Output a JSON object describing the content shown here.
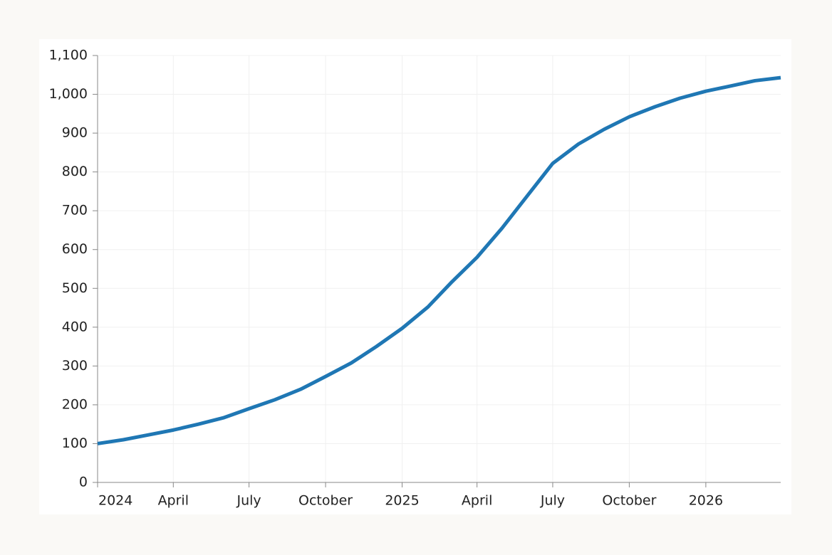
{
  "chart_data": {
    "type": "line",
    "x": [
      "2024-01",
      "2024-02",
      "2024-03",
      "2024-04",
      "2024-05",
      "2024-06",
      "2024-07",
      "2024-08",
      "2024-09",
      "2024-10",
      "2024-11",
      "2024-12",
      "2025-01",
      "2025-02",
      "2025-03",
      "2025-04",
      "2025-05",
      "2025-06",
      "2025-07",
      "2025-08",
      "2025-09",
      "2025-10",
      "2025-11",
      "2025-12",
      "2026-01",
      "2026-02",
      "2026-03",
      "2026-04"
    ],
    "series": [
      {
        "color": "#1f77b4",
        "values": [
          100,
          110,
          122,
          135,
          150,
          167,
          190,
          213,
          240,
          273,
          308,
          350,
          397,
          452,
          515,
          580,
          655,
          740,
          822,
          872,
          910,
          942,
          968,
          990,
          1008,
          1022,
          1035,
          1043
        ]
      }
    ],
    "xlim": [
      "2024-01",
      "2026-04"
    ],
    "xticks": [
      {
        "value": "2024-01",
        "label": "2024"
      },
      {
        "value": "2024-04",
        "label": "April"
      },
      {
        "value": "2024-07",
        "label": "July"
      },
      {
        "value": "2024-10",
        "label": "October"
      },
      {
        "value": "2025-01",
        "label": "2025"
      },
      {
        "value": "2025-04",
        "label": "April"
      },
      {
        "value": "2025-07",
        "label": "July"
      },
      {
        "value": "2025-10",
        "label": "October"
      },
      {
        "value": "2026-01",
        "label": "2026"
      }
    ],
    "ylim": [
      0,
      1100
    ],
    "yticks": [
      0,
      100,
      200,
      300,
      400,
      500,
      600,
      700,
      800,
      900,
      {
        "value": 1000,
        "label": "1,000"
      },
      {
        "value": 1100,
        "label": "1,100"
      }
    ],
    "grid": true
  }
}
